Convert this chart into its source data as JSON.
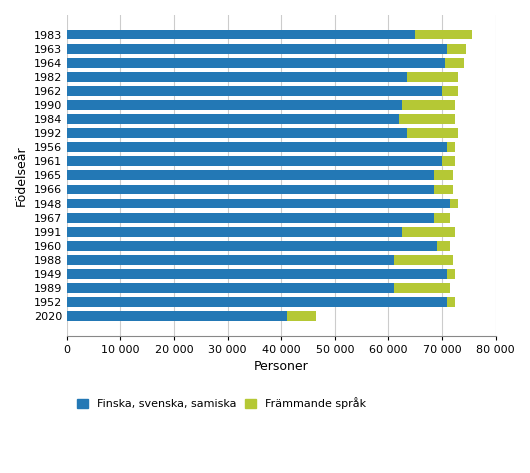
{
  "categories": [
    "1983",
    "1963",
    "1964",
    "1982",
    "1962",
    "1990",
    "1984",
    "1992",
    "1956",
    "1961",
    "1965",
    "1966",
    "1948",
    "1967",
    "1991",
    "1960",
    "1988",
    "1949",
    "1989",
    "1952",
    "2020"
  ],
  "native_lang": [
    65000,
    71000,
    70500,
    63500,
    70000,
    62500,
    62000,
    63500,
    71000,
    70000,
    68500,
    68500,
    71500,
    68500,
    62500,
    69000,
    61000,
    71000,
    61000,
    71000,
    41000
  ],
  "foreign_lang": [
    10500,
    3500,
    3500,
    9500,
    3000,
    10000,
    10500,
    9500,
    1500,
    2500,
    3500,
    3500,
    1500,
    3000,
    10000,
    2500,
    11000,
    1500,
    10500,
    1500,
    5500
  ],
  "color_native": "#2378b5",
  "color_foreign": "#b5c835",
  "xlabel": "Personer",
  "ylabel": "Födelseår",
  "xlim": [
    0,
    80000
  ],
  "xticks": [
    0,
    10000,
    20000,
    30000,
    40000,
    50000,
    60000,
    70000,
    80000
  ],
  "xtick_labels": [
    "0",
    "10 000",
    "20 000",
    "30 000",
    "40 000",
    "50 000",
    "60 000",
    "70 000",
    "80 000"
  ],
  "legend_native": "Finska, svenska, samiska",
  "legend_foreign": "Främmande språk",
  "bar_height": 0.7,
  "background_color": "#ffffff",
  "grid_color": "#cccccc"
}
